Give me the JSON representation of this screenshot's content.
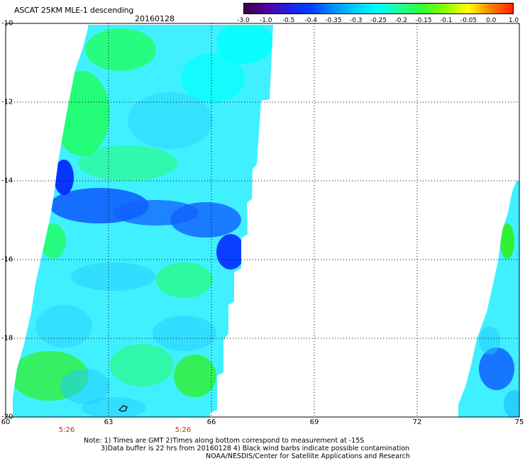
{
  "header": {
    "title": "ASCAT 25KM MLE-1 descending",
    "date": "20160128"
  },
  "colorbar": {
    "tick_labels": [
      "-3.0",
      "-1.0",
      "-0.5",
      "-0.4",
      "-0.35",
      "-0.3",
      "-0.25",
      "-0.2",
      "-0.15",
      "-0.1",
      "-0.05",
      "0.0",
      "1.0"
    ],
    "colors": [
      "#3a0040",
      "#5500a0",
      "#2020e0",
      "#0040ff",
      "#0090ff",
      "#00d0ff",
      "#00ffff",
      "#20ff90",
      "#30ff30",
      "#90ff00",
      "#ffff00",
      "#ff8000",
      "#ff2000"
    ]
  },
  "map": {
    "lat_labels": [
      "-10",
      "-12",
      "-14",
      "-16",
      "-18",
      "-20"
    ],
    "lon_labels": [
      "60",
      "63",
      "66",
      "69",
      "72",
      "75"
    ],
    "time_labels": [
      "5:26",
      "5:26"
    ],
    "colors": {
      "background": "#ffffff",
      "cyan": "#00ffff",
      "light_cyan": "#40f0ff",
      "green": "#20ff60",
      "bright_green": "#30f020",
      "sky_blue": "#20c8ff",
      "blue": "#1060ff",
      "deep_blue": "#0020ff",
      "time_label": "#c03000"
    }
  },
  "notes": {
    "line1": "Note: 1) Times are GMT 2)Times along bottom correspond to measurement at -15S",
    "line2": "3)Data buffer is 22 hrs from 20160128 4) Black wind barbs indicate possible contamination",
    "line3": "NOAA/NESDIS/Center for Satellite Applications and Research"
  }
}
